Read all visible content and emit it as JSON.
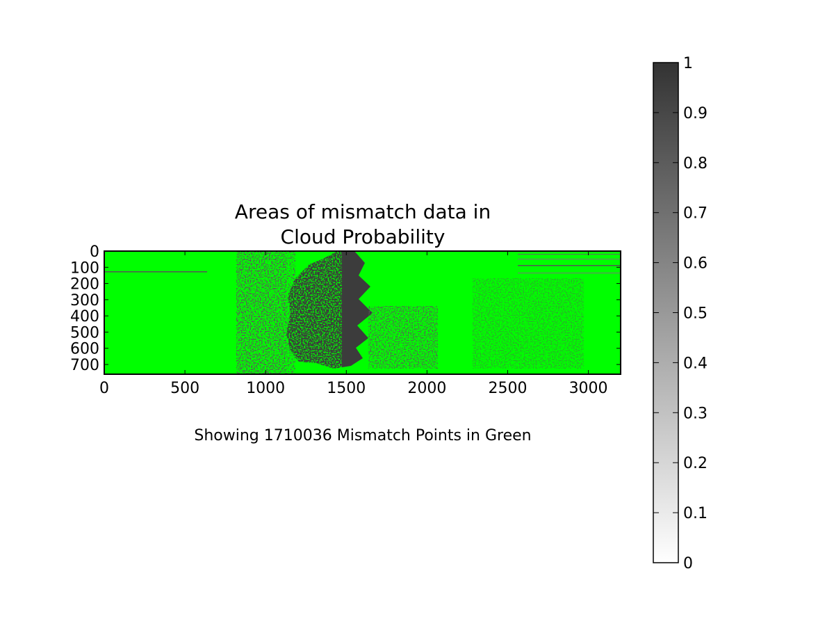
{
  "chart_data": {
    "type": "heatmap",
    "title_lines": [
      "Areas of mismatch data in",
      "Cloud Probability"
    ],
    "caption": "Showing 1710036 Mismatch Points in Green",
    "mismatch_count": 1710036,
    "image_size": {
      "columns": 3200,
      "rows": 760
    },
    "x_ticks": [
      "0",
      "500",
      "1000",
      "1500",
      "2000",
      "2500",
      "3000"
    ],
    "x_tick_values": [
      0,
      500,
      1000,
      1500,
      2000,
      2500,
      3000
    ],
    "xlim": [
      0,
      3200
    ],
    "y_ticks": [
      "0",
      "100",
      "200",
      "300",
      "400",
      "500",
      "600",
      "700"
    ],
    "y_tick_values": [
      0,
      100,
      200,
      300,
      400,
      500,
      600,
      700
    ],
    "ylim": [
      760,
      0
    ],
    "mismatch_color": "#00ff00",
    "colorbar": {
      "cmap": "gray_r",
      "range": [
        0,
        1
      ],
      "ticks": [
        "0",
        "0.1",
        "0.2",
        "0.3",
        "0.4",
        "0.5",
        "0.6",
        "0.7",
        "0.8",
        "0.9",
        "1"
      ],
      "tick_values": [
        0,
        0.1,
        0.2,
        0.3,
        0.4,
        0.5,
        0.6,
        0.7,
        0.8,
        0.9,
        1
      ],
      "low_color": "#ffffff",
      "high_color": "#333333"
    },
    "grid": false
  }
}
